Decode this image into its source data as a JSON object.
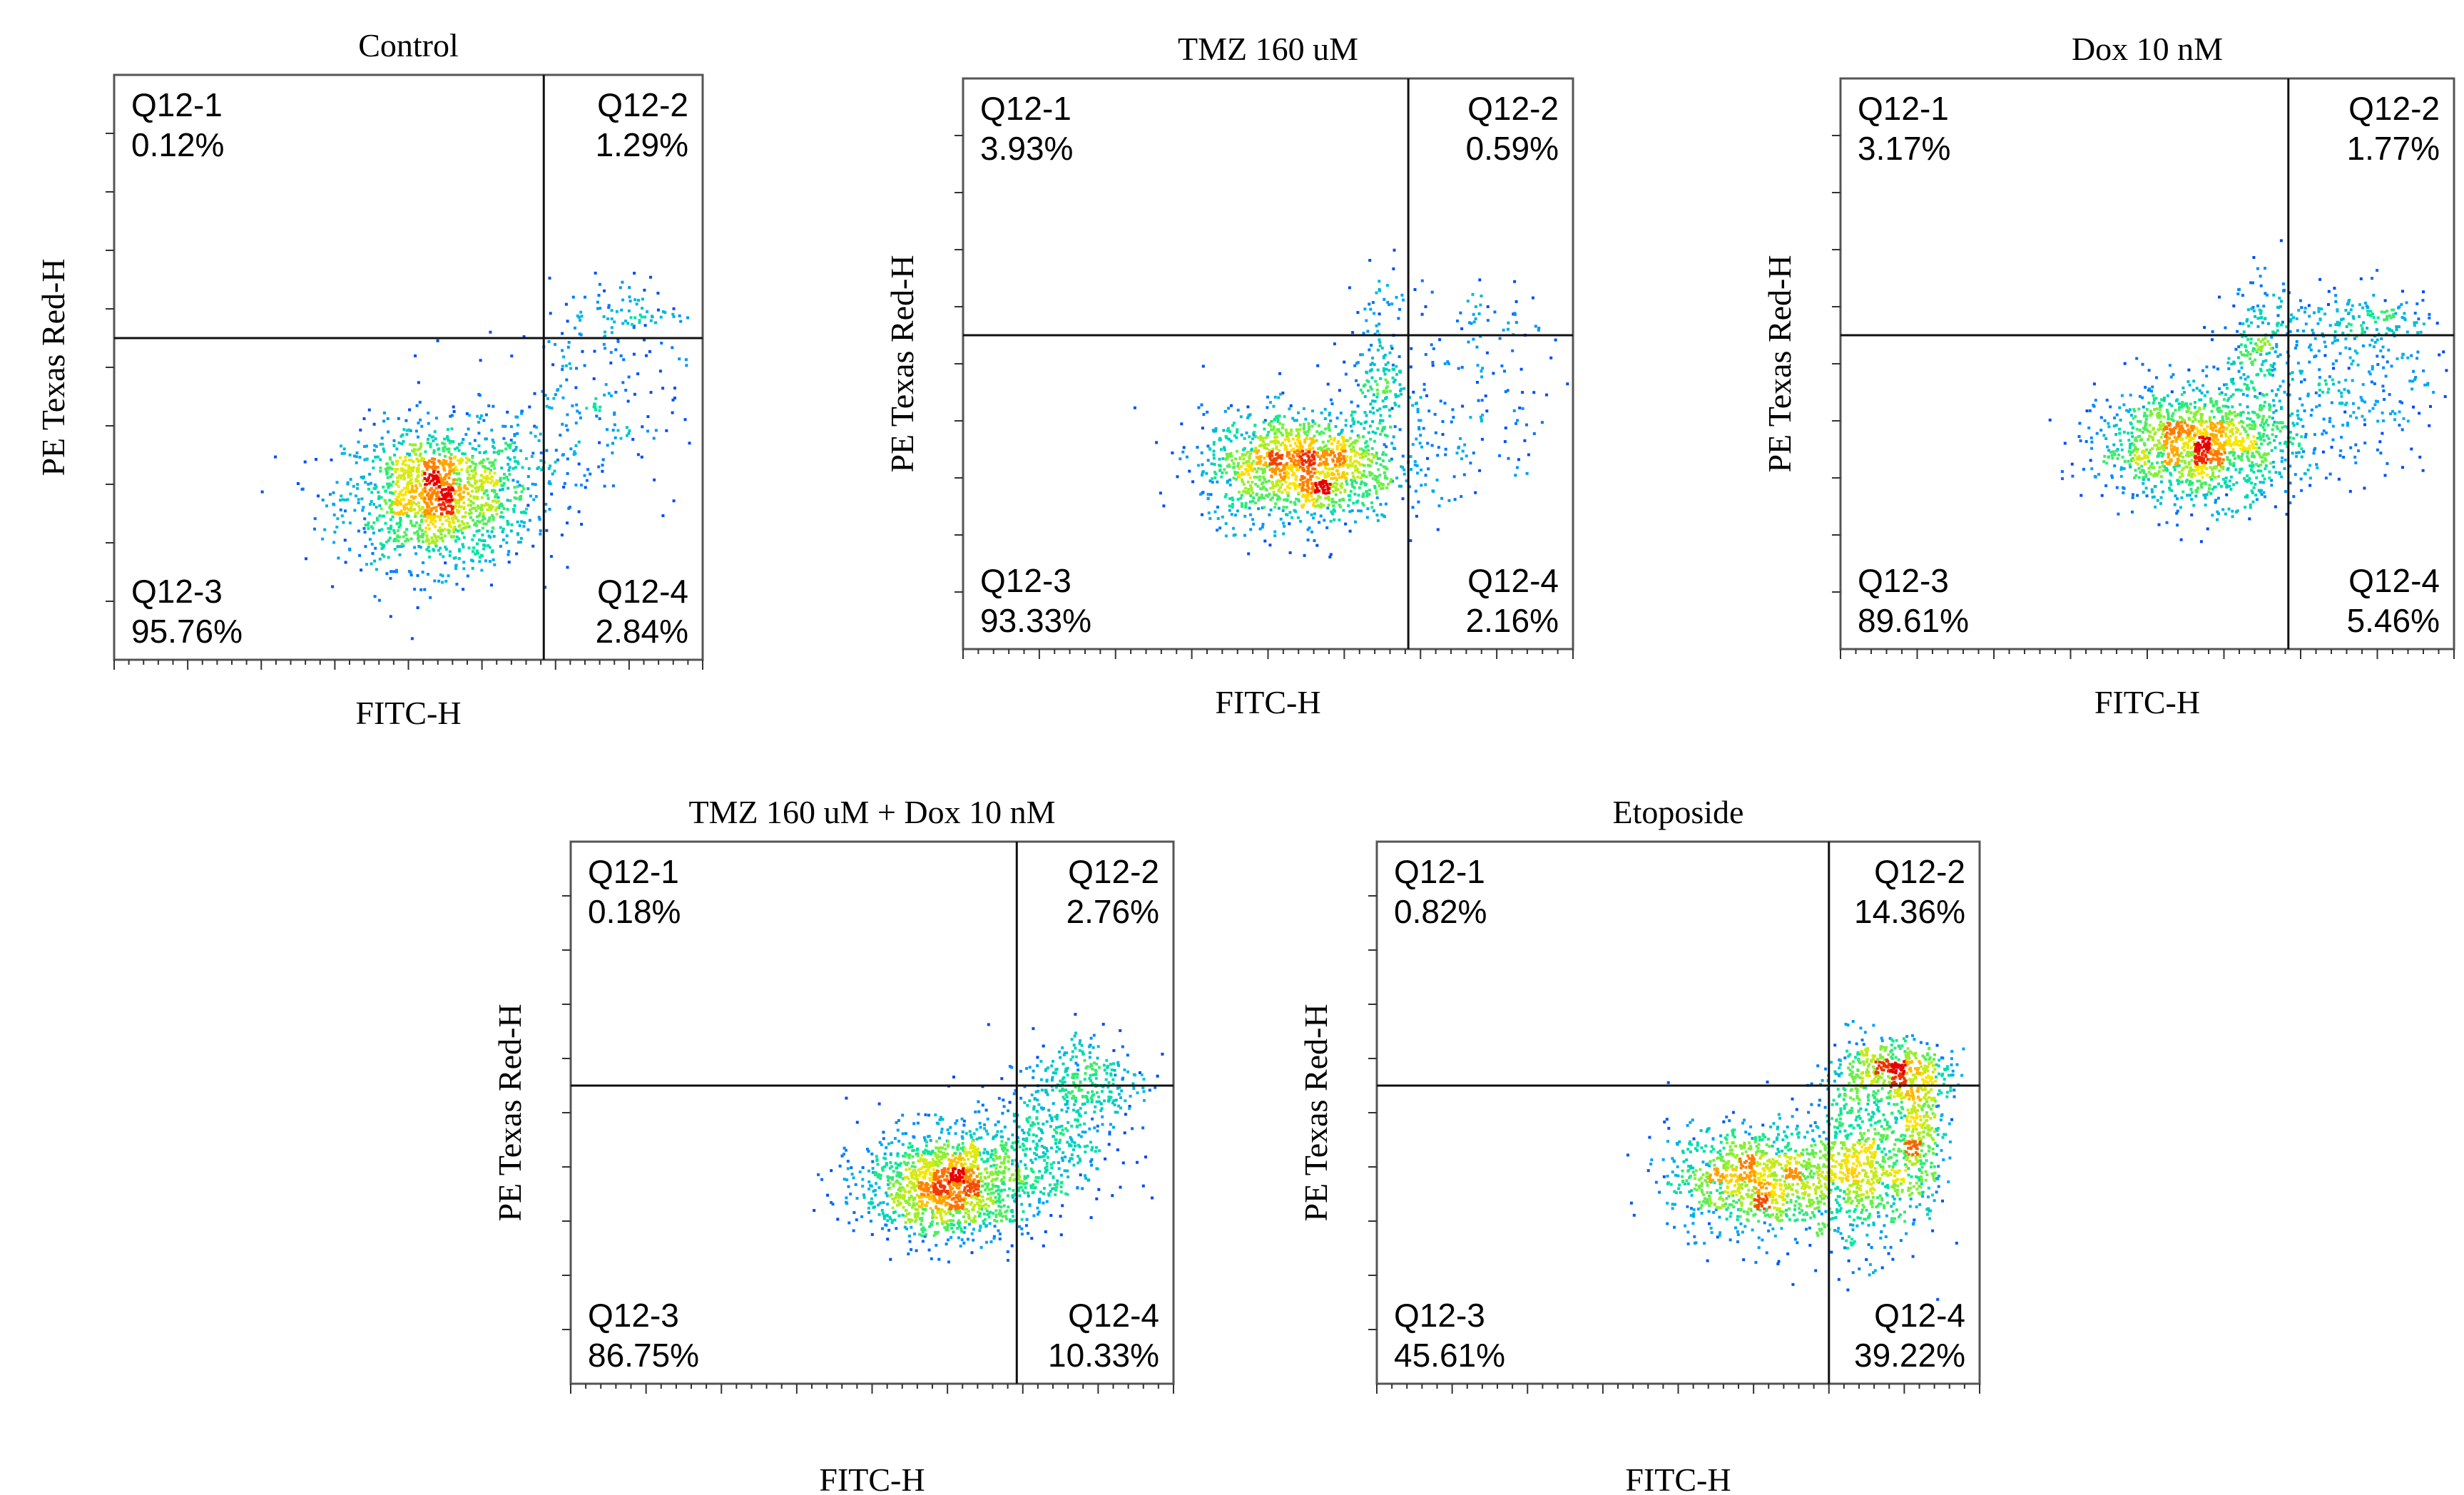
{
  "figure": {
    "description_free": true
  },
  "chart_data": [
    {
      "type": "scatter",
      "title": "Control",
      "xlabel": "FITC-H",
      "ylabel": "PE Texas Red-H",
      "quadrants": [
        {
          "name": "Q12-1",
          "percent": "0.12%"
        },
        {
          "name": "Q12-2",
          "percent": "1.29%"
        },
        {
          "name": "Q12-3",
          "percent": "95.76%"
        },
        {
          "name": "Q12-4",
          "percent": "2.84%"
        }
      ],
      "gate_x": 0.73,
      "gate_y": 0.55,
      "clusters": [
        {
          "cx": 0.55,
          "cy": 0.28,
          "sx": 0.08,
          "sy": 0.06,
          "n": 1400
        },
        {
          "cx": 0.78,
          "cy": 0.42,
          "sx": 0.09,
          "sy": 0.08,
          "n": 200
        },
        {
          "cx": 0.86,
          "cy": 0.6,
          "sx": 0.05,
          "sy": 0.03,
          "n": 80
        }
      ]
    },
    {
      "type": "scatter",
      "title": "TMZ  160  uM",
      "xlabel": "FITC-H",
      "ylabel": "PE Texas Red-H",
      "quadrants": [
        {
          "name": "Q12-1",
          "percent": "3.93%"
        },
        {
          "name": "Q12-2",
          "percent": "0.59%"
        },
        {
          "name": "Q12-3",
          "percent": "93.33%"
        },
        {
          "name": "Q12-4",
          "percent": "2.16%"
        }
      ],
      "gate_x": 0.73,
      "gate_y": 0.55,
      "clusters": [
        {
          "cx": 0.55,
          "cy": 0.32,
          "sx": 0.08,
          "sy": 0.05,
          "n": 1300
        },
        {
          "cx": 0.68,
          "cy": 0.48,
          "sx": 0.03,
          "sy": 0.08,
          "n": 200
        },
        {
          "cx": 0.82,
          "cy": 0.4,
          "sx": 0.08,
          "sy": 0.08,
          "n": 120
        },
        {
          "cx": 0.88,
          "cy": 0.58,
          "sx": 0.05,
          "sy": 0.03,
          "n": 40
        }
      ]
    },
    {
      "type": "scatter",
      "title": "Dox  10  nM",
      "xlabel": "FITC-H",
      "ylabel": "PE Texas Red-H",
      "quadrants": [
        {
          "name": "Q12-1",
          "percent": "3.17%"
        },
        {
          "name": "Q12-2",
          "percent": "1.77%"
        },
        {
          "name": "Q12-3",
          "percent": "89.61%"
        },
        {
          "name": "Q12-4",
          "percent": "5.46%"
        }
      ],
      "gate_x": 0.73,
      "gate_y": 0.55,
      "clusters": [
        {
          "cx": 0.58,
          "cy": 0.36,
          "sx": 0.08,
          "sy": 0.05,
          "n": 1300
        },
        {
          "cx": 0.68,
          "cy": 0.52,
          "sx": 0.03,
          "sy": 0.06,
          "n": 200
        },
        {
          "cx": 0.84,
          "cy": 0.46,
          "sx": 0.08,
          "sy": 0.08,
          "n": 260
        },
        {
          "cx": 0.86,
          "cy": 0.58,
          "sx": 0.06,
          "sy": 0.02,
          "n": 120
        }
      ]
    },
    {
      "type": "scatter",
      "title": "TMZ  160  uM + Dox  10  nM",
      "xlabel": "FITC-H",
      "ylabel": "PE Texas Red-H",
      "quadrants": [
        {
          "name": "Q12-1",
          "percent": "0.18%"
        },
        {
          "name": "Q12-2",
          "percent": "2.76%"
        },
        {
          "name": "Q12-3",
          "percent": "86.75%"
        },
        {
          "name": "Q12-4",
          "percent": "10.33%"
        }
      ],
      "gate_x": 0.74,
      "gate_y": 0.55,
      "clusters": [
        {
          "cx": 0.62,
          "cy": 0.37,
          "sx": 0.07,
          "sy": 0.05,
          "n": 1300
        },
        {
          "cx": 0.78,
          "cy": 0.44,
          "sx": 0.06,
          "sy": 0.07,
          "n": 350
        },
        {
          "cx": 0.86,
          "cy": 0.56,
          "sx": 0.05,
          "sy": 0.05,
          "n": 250
        }
      ]
    },
    {
      "type": "scatter",
      "title": "Etoposide",
      "xlabel": "FITC-H",
      "ylabel": "PE Texas Red-H",
      "quadrants": [
        {
          "name": "Q12-1",
          "percent": "0.82%"
        },
        {
          "name": "Q12-2",
          "percent": "14.36%"
        },
        {
          "name": "Q12-3",
          "percent": "45.61%"
        },
        {
          "name": "Q12-4",
          "percent": "39.22%"
        }
      ],
      "gate_x": 0.75,
      "gate_y": 0.55,
      "clusters": [
        {
          "cx": 0.62,
          "cy": 0.38,
          "sx": 0.07,
          "sy": 0.05,
          "n": 900
        },
        {
          "cx": 0.8,
          "cy": 0.4,
          "sx": 0.05,
          "sy": 0.08,
          "n": 700
        },
        {
          "cx": 0.9,
          "cy": 0.46,
          "sx": 0.02,
          "sy": 0.06,
          "n": 300
        },
        {
          "cx": 0.85,
          "cy": 0.58,
          "sx": 0.05,
          "sy": 0.03,
          "n": 400
        }
      ]
    }
  ]
}
